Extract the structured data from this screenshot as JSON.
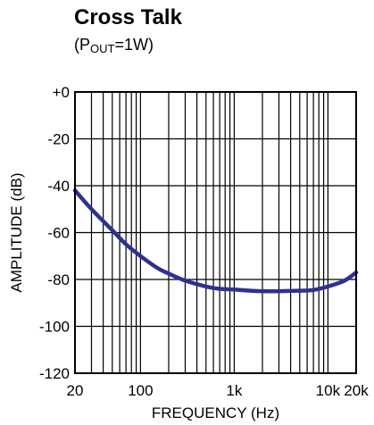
{
  "chart_data": {
    "type": "line",
    "title": "Cross Talk",
    "subtitle": {
      "open": "(P",
      "sub": "OUT",
      "close": "=1W)"
    },
    "xlabel": "FREQUENCY (Hz)",
    "ylabel": "AMPLITUDE (dB)",
    "x_scale": "log",
    "xlim": [
      20,
      20000
    ],
    "ylim": [
      -120,
      0
    ],
    "grid": true,
    "x_ticks": [
      {
        "value": 20,
        "label": "20"
      },
      {
        "value": 100,
        "label": "100"
      },
      {
        "value": 1000,
        "label": "1k"
      },
      {
        "value": 10000,
        "label": "10k"
      },
      {
        "value": 20000,
        "label": "20k"
      }
    ],
    "y_ticks": [
      {
        "value": 0,
        "label": "+0"
      },
      {
        "value": -20,
        "label": "-20"
      },
      {
        "value": -40,
        "label": "-40"
      },
      {
        "value": -60,
        "label": "-60"
      },
      {
        "value": -80,
        "label": "-80"
      },
      {
        "value": -100,
        "label": "-100"
      },
      {
        "value": -120,
        "label": "-120"
      }
    ],
    "series": [
      {
        "color": "#2e3192",
        "x": [
          20,
          30,
          50,
          70,
          100,
          150,
          200,
          300,
          500,
          700,
          1000,
          1500,
          2000,
          3000,
          5000,
          7000,
          10000,
          15000,
          20000
        ],
        "y": [
          -42,
          -50,
          -59,
          -65,
          -70,
          -75,
          -77.5,
          -80.5,
          -83,
          -84,
          -84.3,
          -84.8,
          -85,
          -85,
          -84.8,
          -84.5,
          -83,
          -80.5,
          -77
        ]
      }
    ]
  }
}
